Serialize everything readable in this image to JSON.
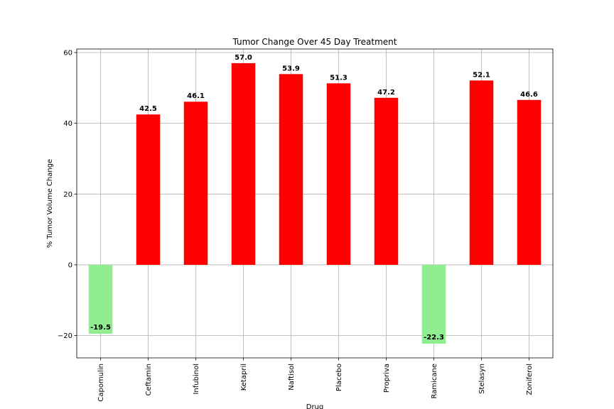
{
  "chart_data": {
    "type": "bar",
    "title": "Tumor Change Over 45 Day Treatment",
    "xlabel": "Drug",
    "ylabel": "% Tumor Volume Change",
    "categories": [
      "Capomulin",
      "Ceftamin",
      "Infubinol",
      "Ketapril",
      "Naftisol",
      "Placebo",
      "Propriva",
      "Ramicane",
      "Stelasyn",
      "Zoniferol"
    ],
    "values": [
      -19.5,
      42.5,
      46.1,
      57.0,
      53.9,
      51.3,
      47.2,
      -22.3,
      52.1,
      46.6
    ],
    "data_labels": [
      "-19.5",
      "42.5",
      "46.1",
      "57.0",
      "53.9",
      "51.3",
      "47.2",
      "-22.3",
      "52.1",
      "46.6"
    ],
    "ylim": [
      -26.3,
      61.0
    ],
    "yticks": [
      -20,
      0,
      20,
      40,
      60
    ],
    "ytick_labels": [
      "−20",
      "0",
      "20",
      "40",
      "60"
    ],
    "grid": true,
    "colors": {
      "positive": "#ff0000",
      "negative": "#90ee90"
    }
  }
}
